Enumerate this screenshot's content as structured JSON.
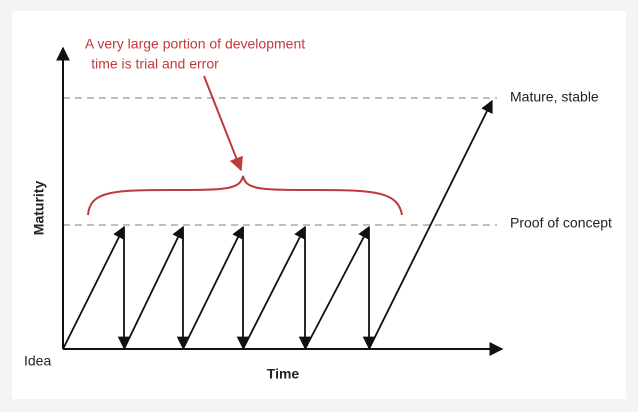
{
  "annotation": {
    "lines": [
      "A very large portion of development",
      "time is trial and error"
    ]
  },
  "levels": {
    "mature": "Mature, stable",
    "proof": "Proof of concept"
  },
  "axes": {
    "y_label": "Maturity",
    "x_label": "Time",
    "origin_label": "Idea"
  }
}
